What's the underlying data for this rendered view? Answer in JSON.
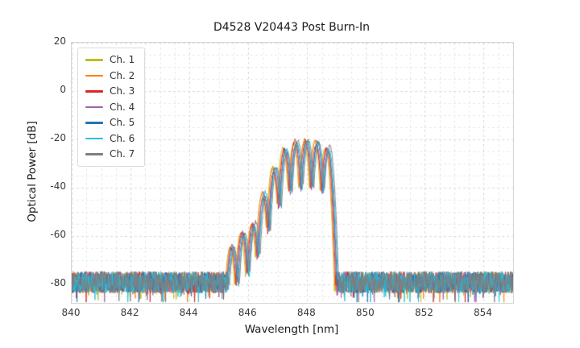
{
  "chart_data": {
    "type": "line",
    "title": "D4528 V20443 Post Burn-In",
    "xlabel": "Wavelength [nm]",
    "ylabel": "Optical Power [dB]",
    "xlim": [
      840,
      855
    ],
    "ylim": [
      -87.5,
      20
    ],
    "xticks": [
      840,
      842,
      844,
      846,
      848,
      850,
      852,
      854
    ],
    "yticks": [
      20,
      0,
      -20,
      -40,
      -60,
      -80
    ],
    "x_minor_step": 0.5,
    "y_minor_step": 5,
    "grid_style": "dashed",
    "legend_position": "upper-left",
    "series": [
      {
        "name": "Ch. 1",
        "color": "#bcbd22"
      },
      {
        "name": "Ch. 2",
        "color": "#ff7f0e"
      },
      {
        "name": "Ch. 3",
        "color": "#d62728"
      },
      {
        "name": "Ch. 4",
        "color": "#a65fa8"
      },
      {
        "name": "Ch. 5",
        "color": "#1f77b4"
      },
      {
        "name": "Ch. 6",
        "color": "#22c3dd"
      },
      {
        "name": "Ch. 7",
        "color": "#7f7f7f"
      }
    ],
    "noise_floor_db": -79,
    "noise_spread_db": 9,
    "spectrum": {
      "description": "Multi-longitudinal-mode laser spectrum; modes as [wavelength_nm, peak_dB]; modal dips ~19 dB below adjacent peaks; signal falls to noise floor outside 845.2-849.0 nm",
      "mode_spacing_nm": 0.36,
      "modes": [
        [
          845.45,
          -65
        ],
        [
          845.81,
          -59
        ],
        [
          846.17,
          -55
        ],
        [
          846.53,
          -43
        ],
        [
          846.89,
          -33
        ],
        [
          847.25,
          -24
        ],
        [
          847.61,
          -21.5
        ],
        [
          847.97,
          -21
        ],
        [
          848.33,
          -21.5
        ],
        [
          848.69,
          -23.5
        ]
      ]
    }
  }
}
